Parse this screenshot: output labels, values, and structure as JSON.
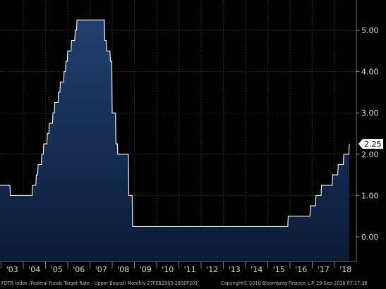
{
  "chart_data": {
    "type": "area",
    "x_labels": [
      "'03",
      "'04",
      "'05",
      "'06",
      "'07",
      "'08",
      "'09",
      "'10",
      "'11",
      "'12",
      "'13",
      "'14",
      "'15",
      "'16",
      "'17",
      "'18"
    ],
    "y_ticks": [
      "0.00",
      "1.00",
      "2.00",
      "3.00",
      "4.00",
      "5.00"
    ],
    "ylim": [
      -0.25,
      5.8
    ],
    "grid": true,
    "last_value_label": "2.25",
    "series": [
      {
        "points": [
          [
            "2003-02",
            1.25
          ],
          [
            "2003-06",
            1.0
          ],
          [
            "2004-06",
            1.25
          ],
          [
            "2004-08",
            1.5
          ],
          [
            "2004-09",
            1.75
          ],
          [
            "2004-11",
            2.0
          ],
          [
            "2004-12",
            2.25
          ],
          [
            "2005-02",
            2.5
          ],
          [
            "2005-03",
            2.75
          ],
          [
            "2005-05",
            3.0
          ],
          [
            "2005-06",
            3.25
          ],
          [
            "2005-08",
            3.5
          ],
          [
            "2005-09",
            3.75
          ],
          [
            "2005-11",
            4.0
          ],
          [
            "2005-12",
            4.25
          ],
          [
            "2006-01",
            4.5
          ],
          [
            "2006-03",
            4.75
          ],
          [
            "2006-05",
            5.0
          ],
          [
            "2006-06",
            5.25
          ],
          [
            "2007-09",
            4.75
          ],
          [
            "2007-10",
            4.5
          ],
          [
            "2007-12",
            4.25
          ],
          [
            "2008-01",
            3.0
          ],
          [
            "2008-03",
            2.25
          ],
          [
            "2008-04",
            2.0
          ],
          [
            "2008-10",
            1.0
          ],
          [
            "2008-12",
            0.25
          ],
          [
            "2015-12",
            0.5
          ],
          [
            "2016-12",
            0.75
          ],
          [
            "2017-03",
            1.0
          ],
          [
            "2017-06",
            1.25
          ],
          [
            "2017-12",
            1.5
          ],
          [
            "2018-03",
            1.75
          ],
          [
            "2018-06",
            2.0
          ],
          [
            "2018-09",
            2.25
          ]
        ]
      }
    ],
    "colors": {
      "area_top": "#1d3a66",
      "area_bottom": "#0a1a33",
      "line": "#ffffff",
      "grid": "#5a5a5a",
      "tick_text": "#d9d9d9",
      "label_bg": "#ffffff",
      "label_text": "#000000"
    }
  },
  "footer": {
    "index_text": "FDTR Index (Federal Funds Target Rate - Upper Bound)  Monthly 27FEB2003-28SEP201",
    "copyright": "Copyright© 2018 Bloomberg Finance L.P.",
    "timestamp": "29-Sep-2018 07:17:38"
  }
}
